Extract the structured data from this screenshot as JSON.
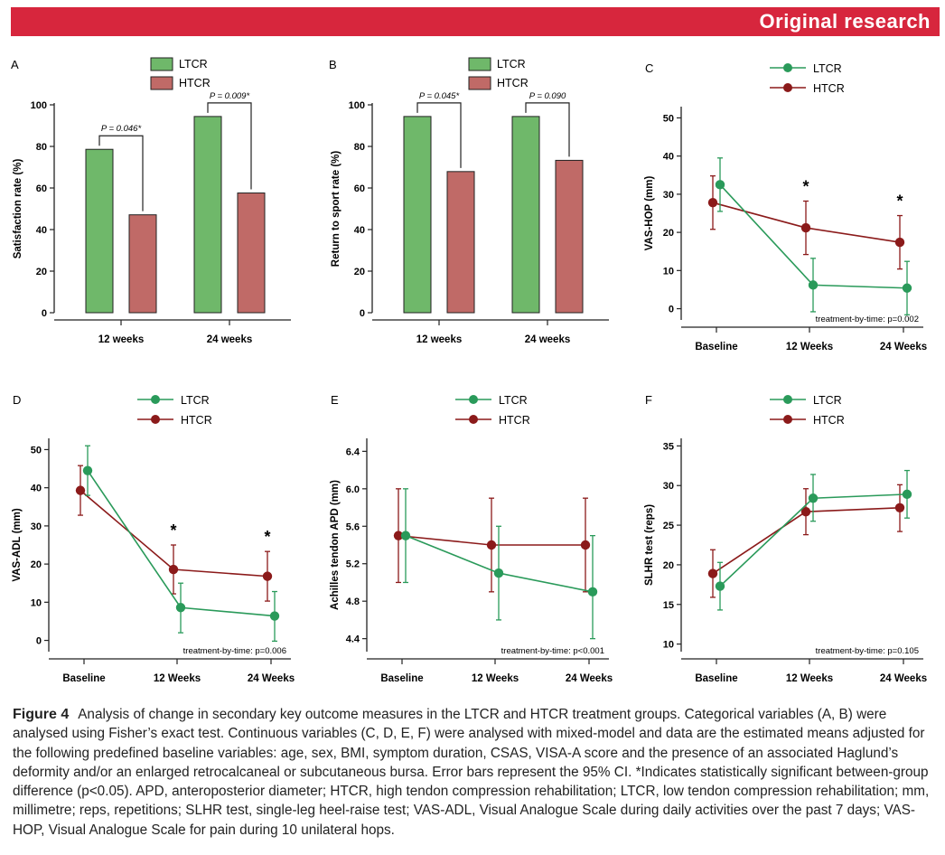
{
  "banner": {
    "label": "Original research"
  },
  "colors": {
    "banner": "#d7263d",
    "ltcr_bar": "#6fb86a",
    "htcr_bar": "#c06a67",
    "ltcr_line": "#2a9a5a",
    "htcr_line": "#8b1a1a"
  },
  "chart_data": [
    {
      "id": "A",
      "type": "bar",
      "letter": "A",
      "categories": [
        "12 weeks",
        "24 weeks"
      ],
      "series": [
        {
          "name": "LTCR",
          "values": [
            78.6,
            94.4
          ]
        },
        {
          "name": "HTCR",
          "values": [
            47.1,
            57.6
          ]
        }
      ],
      "ylabel": "Satisfaction rate (%)",
      "ylim": [
        0,
        100
      ],
      "yticks": [
        0,
        20,
        40,
        60,
        80,
        100
      ],
      "pvalues": [
        "P = 0.046*",
        "P = 0.009*"
      ],
      "legend": [
        "LTCR",
        "HTCR"
      ]
    },
    {
      "id": "B",
      "type": "bar",
      "letter": "B",
      "categories": [
        "12 weeks",
        "24 weeks"
      ],
      "series": [
        {
          "name": "LTCR",
          "values": [
            94.4,
            94.4
          ]
        },
        {
          "name": "HTCR",
          "values": [
            67.9,
            73.3
          ]
        }
      ],
      "ylabel": "Return to sport rate (%)",
      "ylim": [
        0,
        100
      ],
      "yticks": [
        0,
        20,
        40,
        60,
        80,
        100
      ],
      "pvalues": [
        "P = 0.045*",
        "P = 0.090"
      ],
      "legend": [
        "LTCR",
        "HTCR"
      ]
    },
    {
      "id": "C",
      "type": "line",
      "letter": "C",
      "categories": [
        "Baseline",
        "12 Weeks",
        "24 Weeks"
      ],
      "series": [
        {
          "name": "LTCR",
          "values": [
            32.5,
            6.2,
            5.4
          ],
          "lower": [
            25.5,
            -0.8,
            -1.6
          ],
          "upper": [
            39.5,
            13.2,
            12.4
          ]
        },
        {
          "name": "HTCR",
          "values": [
            27.8,
            21.2,
            17.4
          ],
          "lower": [
            20.8,
            14.2,
            10.4
          ],
          "upper": [
            34.8,
            28.2,
            24.4
          ]
        }
      ],
      "ylabel": "VAS-HOP (mm)",
      "ylim": [
        -2,
        52
      ],
      "yticks": [
        0,
        10,
        20,
        30,
        40,
        50
      ],
      "stars": [
        "*",
        "*"
      ],
      "note": "treatment-by-time: p=0.002",
      "legend": [
        "LTCR",
        "HTCR"
      ]
    },
    {
      "id": "D",
      "type": "line",
      "letter": "D",
      "categories": [
        "Baseline",
        "12 Weeks",
        "24 Weeks"
      ],
      "series": [
        {
          "name": "LTCR",
          "values": [
            44.5,
            8.6,
            6.4
          ],
          "lower": [
            38,
            2,
            -0.2
          ],
          "upper": [
            51,
            15,
            12.8
          ]
        },
        {
          "name": "HTCR",
          "values": [
            39.3,
            18.6,
            16.8
          ],
          "lower": [
            32.8,
            12.2,
            10.3
          ],
          "upper": [
            45.8,
            25,
            23.3
          ]
        }
      ],
      "ylabel": "VAS-ADL (mm)",
      "ylim": [
        -2,
        52
      ],
      "yticks": [
        0,
        10,
        20,
        30,
        40,
        50
      ],
      "stars": [
        "*",
        "*"
      ],
      "note": "treatment-by-time: p=0.006",
      "legend": [
        "LTCR",
        "HTCR"
      ]
    },
    {
      "id": "E",
      "type": "line",
      "letter": "E",
      "categories": [
        "Baseline",
        "12 Weeks",
        "24 Weeks"
      ],
      "series": [
        {
          "name": "LTCR",
          "values": [
            5.5,
            5.1,
            4.9
          ],
          "lower": [
            5.0,
            4.6,
            4.4
          ],
          "upper": [
            6.0,
            5.6,
            5.5
          ]
        },
        {
          "name": "HTCR",
          "values": [
            5.5,
            5.4,
            5.4
          ],
          "lower": [
            5.0,
            4.9,
            4.9
          ],
          "upper": [
            6.0,
            5.9,
            5.9
          ]
        }
      ],
      "ylabel": "Achilles tendon APD (mm)",
      "ylim": [
        4.3,
        6.5
      ],
      "yticks": [
        "4.4",
        "4.8",
        "5.2",
        "5.6",
        "6.0",
        "6.4"
      ],
      "stars": [],
      "note": "treatment-by-time: p<0.001",
      "legend": [
        "LTCR",
        "HTCR"
      ]
    },
    {
      "id": "F",
      "type": "line",
      "letter": "F",
      "categories": [
        "Baseline",
        "12 Weeks",
        "24 Weeks"
      ],
      "series": [
        {
          "name": "LTCR",
          "values": [
            17.3,
            28.4,
            28.9
          ],
          "lower": [
            14.3,
            25.5,
            25.9
          ],
          "upper": [
            20.3,
            31.4,
            31.9
          ]
        },
        {
          "name": "HTCR",
          "values": [
            18.9,
            26.7,
            27.2
          ],
          "lower": [
            15.9,
            23.8,
            24.2
          ],
          "upper": [
            21.9,
            29.6,
            30.1
          ]
        }
      ],
      "ylabel": "SLHR test (reps)",
      "ylim": [
        9.5,
        35.5
      ],
      "yticks": [
        10,
        15,
        20,
        25,
        30,
        35
      ],
      "stars": [],
      "note": "treatment-by-time: p=0.105",
      "legend": [
        "LTCR",
        "HTCR"
      ]
    }
  ],
  "caption": {
    "label": "Figure 4",
    "text": "Analysis of change in secondary key outcome measures in the LTCR and HTCR treatment groups. Categorical variables (A, B) were analysed using Fisher’s exact test. Continuous variables (C, D, E, F) were analysed with mixed-model and data are the estimated means adjusted for the following predefined baseline variables: age, sex, BMI, symptom duration, CSAS, VISA-A score and the presence of an associated Haglund’s deformity and/or an enlarged retrocalcaneal or subcutaneous bursa. Error bars represent the 95% CI. *Indicates statistically significant between-group difference (p<0.05). APD, anteroposterior diameter; HTCR, high tendon compression rehabilitation; LTCR, low tendon compression rehabilitation; mm, millimetre; reps, repetitions; SLHR test, single-leg heel-raise test; VAS-ADL, Visual Analogue Scale during daily activities over the past 7 days; VAS-HOP, Visual Analogue Scale for pain during 10 unilateral hops."
  }
}
